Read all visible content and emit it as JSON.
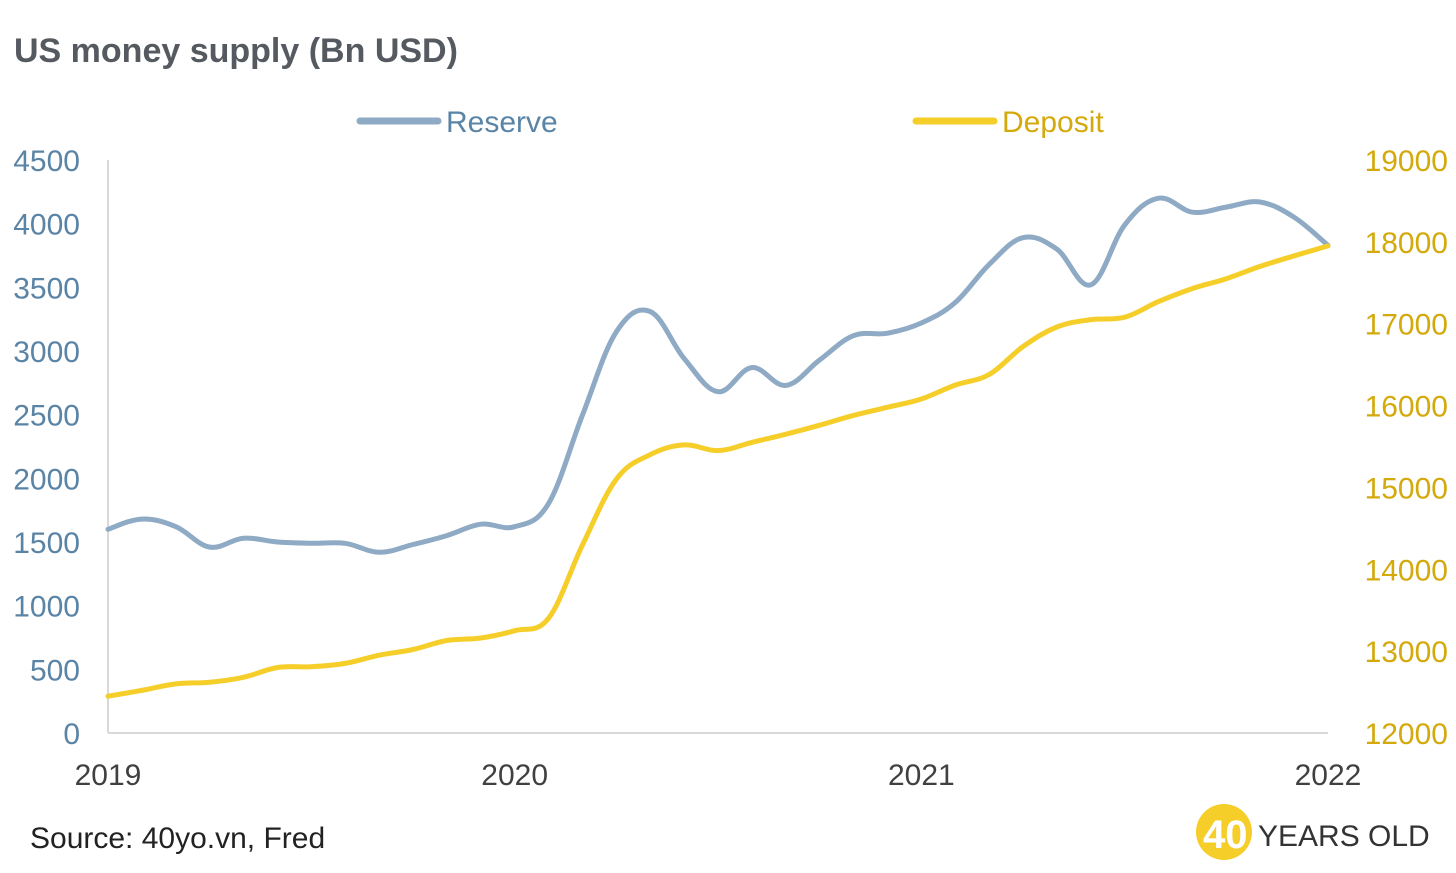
{
  "colors": {
    "reserve": "#8eaac4",
    "deposit": "#f5ce2a",
    "left_axis_text": "#5a84a6",
    "right_axis_text": "#d4a90b",
    "x_axis_text": "#404040",
    "title": "#555a60",
    "axis_line": "#d9d9d9"
  },
  "chart_data": {
    "type": "line",
    "title": "US money supply (Bn USD)",
    "x_tick_labels": [
      "2019",
      "2020",
      "2021",
      "2022"
    ],
    "x_range": [
      2019,
      2022
    ],
    "y_left": {
      "ticks": [
        "0",
        "500",
        "1000",
        "1500",
        "2000",
        "2500",
        "3000",
        "3500",
        "4000",
        "4500"
      ],
      "range": [
        0,
        4500
      ]
    },
    "y_right": {
      "ticks": [
        "12000",
        "13000",
        "14000",
        "15000",
        "16000",
        "17000",
        "18000",
        "19000"
      ],
      "range": [
        12000,
        19000
      ]
    },
    "legend_position": "top-center",
    "series": [
      {
        "name": "Reserve",
        "axis": "left",
        "x": [
          2019.0,
          2019.083,
          2019.167,
          2019.25,
          2019.333,
          2019.417,
          2019.5,
          2019.583,
          2019.667,
          2019.75,
          2019.833,
          2019.917,
          2020.0,
          2020.083,
          2020.167,
          2020.25,
          2020.333,
          2020.417,
          2020.5,
          2020.583,
          2020.667,
          2020.75,
          2020.833,
          2020.917,
          2021.0,
          2021.083,
          2021.167,
          2021.25,
          2021.333,
          2021.417,
          2021.5,
          2021.583,
          2021.667,
          2021.75,
          2021.833,
          2021.917,
          2022.0
        ],
        "values": [
          1600,
          1680,
          1620,
          1460,
          1530,
          1500,
          1490,
          1490,
          1420,
          1480,
          1550,
          1640,
          1620,
          1800,
          2500,
          3150,
          3310,
          2940,
          2680,
          2870,
          2730,
          2930,
          3120,
          3140,
          3220,
          3380,
          3680,
          3890,
          3800,
          3520,
          3990,
          4200,
          4090,
          4130,
          4170,
          4050,
          3830
        ]
      },
      {
        "name": "Deposit",
        "axis": "right",
        "x": [
          2019.0,
          2019.083,
          2019.167,
          2019.25,
          2019.333,
          2019.417,
          2019.5,
          2019.583,
          2019.667,
          2019.75,
          2019.833,
          2019.917,
          2020.0,
          2020.083,
          2020.167,
          2020.25,
          2020.333,
          2020.417,
          2020.5,
          2020.583,
          2020.667,
          2020.75,
          2020.833,
          2020.917,
          2021.0,
          2021.083,
          2021.167,
          2021.25,
          2021.333,
          2021.417,
          2021.5,
          2021.583,
          2021.667,
          2021.75,
          2021.833,
          2021.917,
          2022.0
        ],
        "values": [
          12450,
          12520,
          12600,
          12620,
          12680,
          12800,
          12810,
          12850,
          12950,
          13020,
          13130,
          13160,
          13250,
          13400,
          14300,
          15100,
          15400,
          15520,
          15450,
          15550,
          15650,
          15760,
          15880,
          15980,
          16080,
          16250,
          16380,
          16720,
          16960,
          17050,
          17080,
          17270,
          17430,
          17550,
          17700,
          17830,
          17950
        ]
      }
    ]
  },
  "legend": {
    "reserve_label": "Reserve",
    "deposit_label": "Deposit"
  },
  "footer": {
    "source": "Source: 40yo.vn, Fred",
    "logo_number": "40",
    "logo_text": "YEARS OLD"
  }
}
